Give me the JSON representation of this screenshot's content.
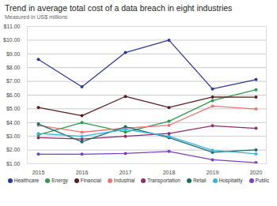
{
  "chart_data": {
    "type": "line",
    "title": "Trend in average total cost of a data breach in eight industries",
    "subtitle": "Measured in US$ millions",
    "x": [
      2015,
      2016,
      2017,
      2018,
      2019,
      2020
    ],
    "series": [
      {
        "name": "Healthcare",
        "color": "#2b3a9e",
        "marker": "circle",
        "values": [
          8.6,
          6.6,
          9.1,
          10.0,
          6.45,
          7.13
        ]
      },
      {
        "name": "Energy",
        "color": "#2e9b4f",
        "marker": "circle",
        "values": [
          3.1,
          4.0,
          3.3,
          4.1,
          5.6,
          6.39
        ]
      },
      {
        "name": "Financial",
        "color": "#5b1f1f",
        "marker": "circle",
        "values": [
          5.1,
          4.5,
          5.9,
          5.1,
          5.86,
          5.85
        ]
      },
      {
        "name": "Industrial",
        "color": "#f07474",
        "marker": "circle",
        "values": [
          3.8,
          3.3,
          3.6,
          3.8,
          5.2,
          4.99
        ]
      },
      {
        "name": "Transportation",
        "color": "#8e2d6c",
        "marker": "circle",
        "values": [
          2.9,
          2.8,
          3.0,
          3.2,
          3.77,
          3.58
        ]
      },
      {
        "name": "Retail",
        "color": "#1c6b6b",
        "marker": "circle",
        "values": [
          3.9,
          2.6,
          3.7,
          2.9,
          1.84,
          2.01
        ]
      },
      {
        "name": "Hospitality",
        "color": "#36b4e6",
        "marker": "circle",
        "values": [
          3.2,
          3.0,
          3.5,
          3.0,
          1.98,
          1.72
        ]
      },
      {
        "name": "Public",
        "color": "#7a3fc6",
        "marker": "circle",
        "values": [
          1.7,
          1.7,
          1.75,
          1.9,
          1.29,
          1.08
        ]
      }
    ],
    "ylim": [
      1,
      11
    ],
    "yticks": [
      {
        "value": 1,
        "label": "$1.00"
      },
      {
        "value": 2,
        "label": "$2.00"
      },
      {
        "value": 3,
        "label": "$3.00"
      },
      {
        "value": 4,
        "label": "$4.00"
      },
      {
        "value": 5,
        "label": "$5.00"
      },
      {
        "value": 6,
        "label": "$6.00"
      },
      {
        "value": 7,
        "label": "$7.00"
      },
      {
        "value": 8,
        "label": "$8.00"
      },
      {
        "value": 9,
        "label": "$9.00"
      },
      {
        "value": 10,
        "label": "$10.00"
      },
      {
        "value": 11,
        "label": "$11.00"
      }
    ],
    "grid": true,
    "legend": "bottom"
  }
}
